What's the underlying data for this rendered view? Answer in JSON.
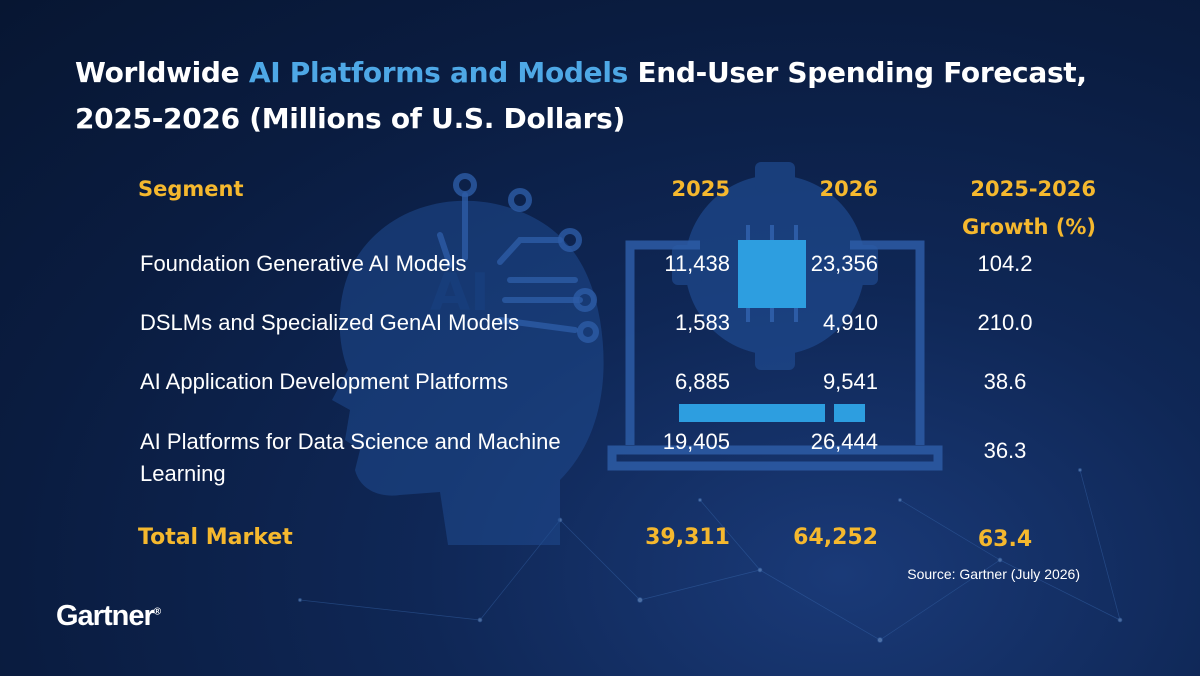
{
  "header": {
    "title_part1": "Worldwide ",
    "title_highlight": "AI Platforms and Models",
    "title_part2": " End-User Spending Forecast, 2025-2026 (Millions of U.S. Dollars)"
  },
  "colors": {
    "background": "#0b1f47",
    "accent_yellow": "#f5b82e",
    "accent_blue": "#4ea8e6",
    "text": "#ffffff"
  },
  "chart_data": {
    "type": "table",
    "columns": [
      "Segment",
      "2025",
      "2026",
      "2025-2026 Growth (%)"
    ],
    "rows": [
      {
        "segment": "Foundation Generative AI Models",
        "y2025": "11,438",
        "y2026": "23,356",
        "growth": "104.2"
      },
      {
        "segment": "DSLMs and Specialized GenAI Models",
        "y2025": "1,583",
        "y2026": "4,910",
        "growth": "210.0"
      },
      {
        "segment": "AI Application Development Platforms",
        "y2025": "6,885",
        "y2026": "9,541",
        "growth": "38.6"
      },
      {
        "segment": "AI Platforms for Data Science and Machine Learning",
        "y2025": "19,405",
        "y2026": "26,444",
        "growth": "36.3"
      }
    ],
    "total": {
      "segment": "Total Market",
      "y2025": "39,311",
      "y2026": "64,252",
      "growth": "63.4"
    }
  },
  "footer": {
    "source": "Source: Gartner (July 2026)",
    "logo": "Gartner",
    "logo_mark": "®"
  }
}
